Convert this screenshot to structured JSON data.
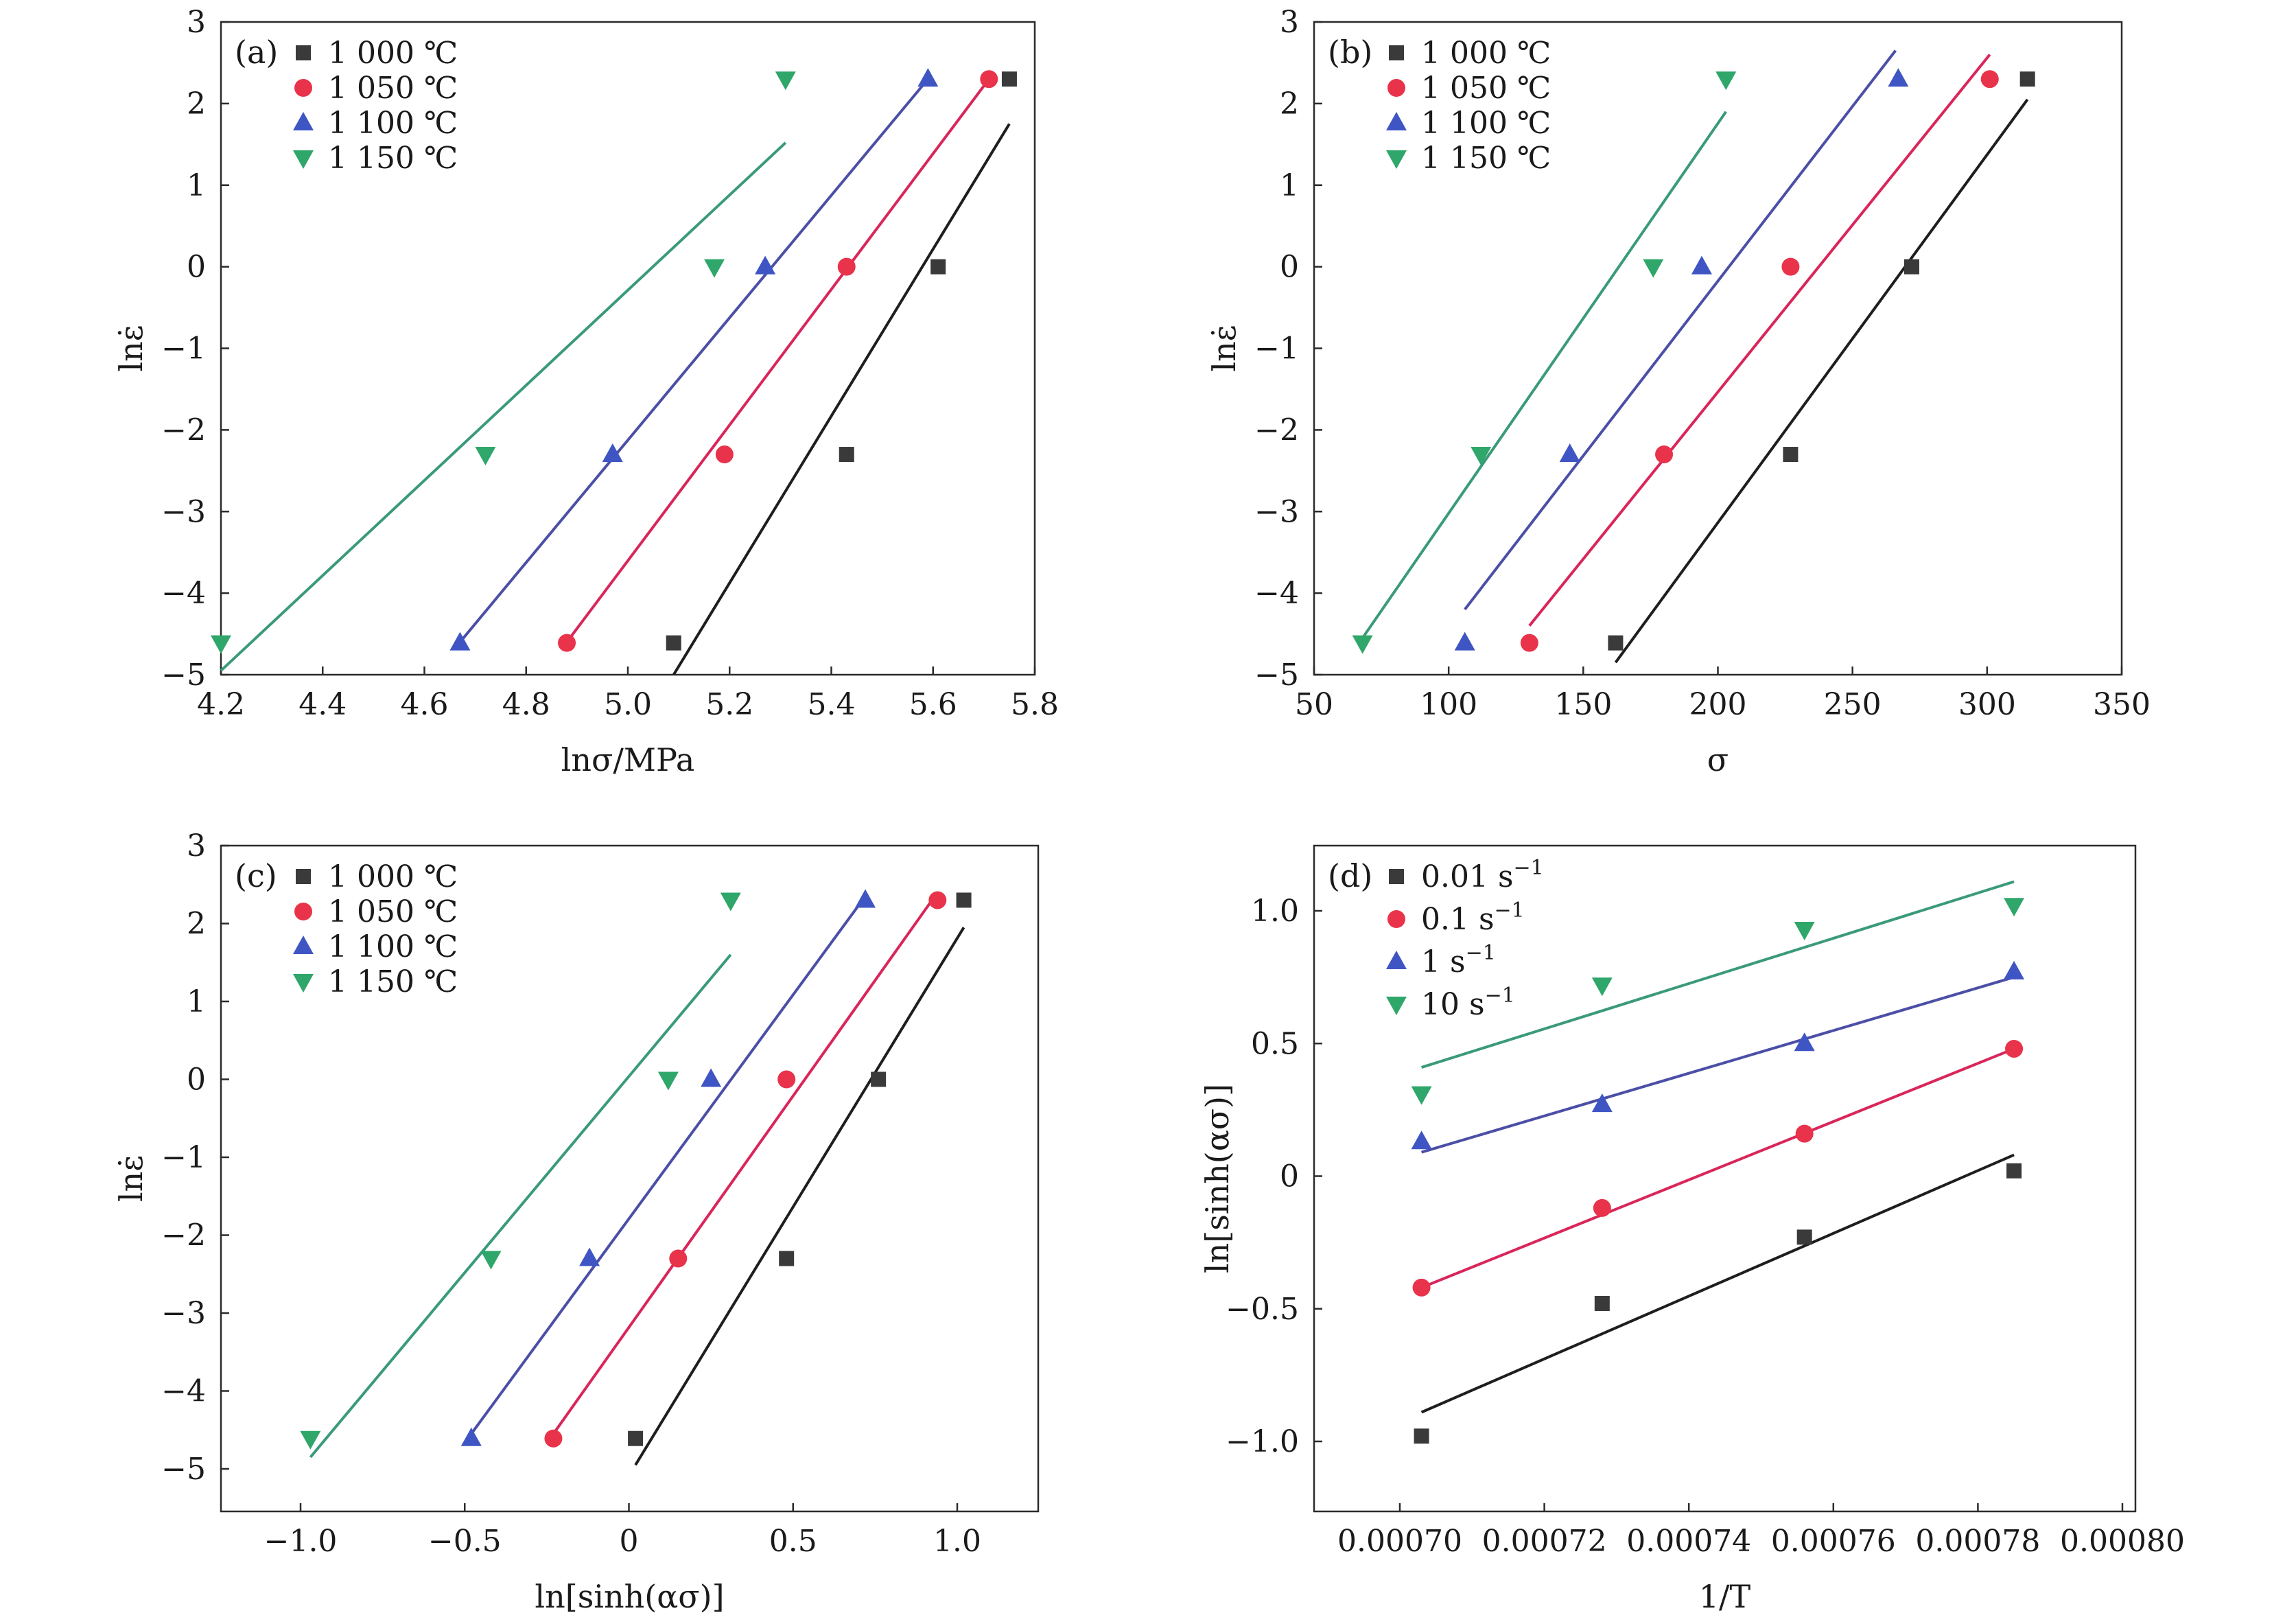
{
  "colors": {
    "c1000": "#3a3a3a",
    "c1050": "#e8334a",
    "c1100": "#3f55c4",
    "c1150": "#2fa66a",
    "line1000": "#1e1e1e",
    "line1050": "#d9265a",
    "line1100": "#4b4fa6",
    "line1150": "#3a9a7a"
  },
  "chart_data": [
    {
      "panel": "(a)",
      "type": "scatter",
      "xlabel": "lnσ/MPa",
      "ylabel": "lnε̇",
      "xlim": [
        4.2,
        5.8
      ],
      "ylim": [
        -5,
        3
      ],
      "xticks": [
        "4.2",
        "4.4",
        "4.6",
        "4.8",
        "5.0",
        "5.2",
        "5.4",
        "5.6",
        "5.8"
      ],
      "xtick_values": [
        4.2,
        4.4,
        4.6,
        4.8,
        5.0,
        5.2,
        5.4,
        5.6,
        5.8
      ],
      "yticks": [
        "3",
        "2",
        "1",
        "0",
        "−1",
        "−2",
        "−3",
        "−4",
        "−5"
      ],
      "ytick_values": [
        3,
        2,
        1,
        0,
        -1,
        -2,
        -3,
        -4,
        -5
      ],
      "legend_position": "top-left",
      "series": [
        {
          "name": "1 000 ℃",
          "marker": "square",
          "color_key": "c1000",
          "line_color_key": "line1000",
          "points": [
            [
              5.09,
              -4.61
            ],
            [
              5.43,
              -2.3
            ],
            [
              5.61,
              0.0
            ],
            [
              5.75,
              2.3
            ]
          ],
          "fit": [
            [
              5.09,
              -5.0
            ],
            [
              5.75,
              1.75
            ]
          ]
        },
        {
          "name": "1 050 ℃",
          "marker": "circle",
          "color_key": "c1050",
          "line_color_key": "line1050",
          "points": [
            [
              4.88,
              -4.61
            ],
            [
              5.19,
              -2.3
            ],
            [
              5.43,
              0.0
            ],
            [
              5.71,
              2.3
            ]
          ],
          "fit": [
            [
              4.88,
              -4.6
            ],
            [
              5.71,
              2.3
            ]
          ]
        },
        {
          "name": "1 100 ℃",
          "marker": "triangle-up",
          "color_key": "c1100",
          "line_color_key": "line1100",
          "points": [
            [
              4.67,
              -4.61
            ],
            [
              4.97,
              -2.3
            ],
            [
              5.27,
              0.0
            ],
            [
              5.59,
              2.3
            ]
          ],
          "fit": [
            [
              4.67,
              -4.6
            ],
            [
              5.59,
              2.3
            ]
          ]
        },
        {
          "name": "1 150 ℃",
          "marker": "triangle-down",
          "color_key": "c1150",
          "line_color_key": "line1150",
          "points": [
            [
              4.2,
              -4.61
            ],
            [
              4.72,
              -2.3
            ],
            [
              5.17,
              0.0
            ],
            [
              5.31,
              2.3
            ]
          ],
          "fit": [
            [
              4.2,
              -4.95
            ],
            [
              5.31,
              1.52
            ]
          ]
        }
      ]
    },
    {
      "panel": "(b)",
      "type": "scatter",
      "xlabel": "σ",
      "ylabel": "lnε̇",
      "xlim": [
        50,
        350
      ],
      "ylim": [
        -5,
        3
      ],
      "xticks": [
        "50",
        "100",
        "150",
        "200",
        "250",
        "300",
        "350"
      ],
      "xtick_values": [
        50,
        100,
        150,
        200,
        250,
        300,
        350
      ],
      "yticks": [
        "3",
        "2",
        "1",
        "0",
        "−1",
        "−2",
        "−3",
        "−4",
        "−5"
      ],
      "ytick_values": [
        3,
        2,
        1,
        0,
        -1,
        -2,
        -3,
        -4,
        -5
      ],
      "legend_position": "top-left",
      "series": [
        {
          "name": "1 000 ℃",
          "marker": "square",
          "color_key": "c1000",
          "line_color_key": "line1000",
          "points": [
            [
              162,
              -4.61
            ],
            [
              227,
              -2.3
            ],
            [
              272,
              0.0
            ],
            [
              315,
              2.3
            ]
          ],
          "fit": [
            [
              162,
              -4.85
            ],
            [
              315,
              2.05
            ]
          ]
        },
        {
          "name": "1 050 ℃",
          "marker": "circle",
          "color_key": "c1050",
          "line_color_key": "line1050",
          "points": [
            [
              130,
              -4.61
            ],
            [
              180,
              -2.3
            ],
            [
              227,
              0.0
            ],
            [
              301,
              2.3
            ]
          ],
          "fit": [
            [
              130,
              -4.4
            ],
            [
              301,
              2.6
            ]
          ]
        },
        {
          "name": "1 100 ℃",
          "marker": "triangle-up",
          "color_key": "c1100",
          "line_color_key": "line1100",
          "points": [
            [
              106,
              -4.61
            ],
            [
              145,
              -2.3
            ],
            [
              194,
              0.0
            ],
            [
              267,
              2.3
            ]
          ],
          "fit": [
            [
              106,
              -4.2
            ],
            [
              266,
              2.65
            ]
          ]
        },
        {
          "name": "1 150 ℃",
          "marker": "triangle-down",
          "color_key": "c1150",
          "line_color_key": "line1150",
          "points": [
            [
              68,
              -4.61
            ],
            [
              112,
              -2.3
            ],
            [
              176,
              0.0
            ],
            [
              203,
              2.3
            ]
          ],
          "fit": [
            [
              68,
              -4.55
            ],
            [
              203,
              1.9
            ]
          ]
        }
      ]
    },
    {
      "panel": "(c)",
      "type": "scatter",
      "xlabel": "ln[sinh(ασ)]",
      "ylabel": "lnε̇",
      "xlim": [
        -1.25,
        1.25
      ],
      "ylim": [
        -5.5,
        3
      ],
      "xticks": [
        "−1.0",
        "−0.5",
        "0",
        "0.5",
        "1.0"
      ],
      "xtick_values": [
        -1.0,
        -0.5,
        0,
        0.5,
        1.0
      ],
      "yticks": [
        "3",
        "2",
        "1",
        "0",
        "−1",
        "−2",
        "−3",
        "−4",
        "−5"
      ],
      "ytick_values": [
        3,
        2,
        1,
        0,
        -1,
        -2,
        -3,
        -4,
        -5
      ],
      "legend_position": "top-left",
      "series": [
        {
          "name": "1 000 ℃",
          "marker": "square",
          "color_key": "c1000",
          "line_color_key": "line1000",
          "points": [
            [
              0.02,
              -4.61
            ],
            [
              0.48,
              -2.3
            ],
            [
              0.76,
              0.0
            ],
            [
              1.02,
              2.3
            ]
          ],
          "fit": [
            [
              0.02,
              -4.95
            ],
            [
              1.02,
              1.95
            ]
          ]
        },
        {
          "name": "1 050 ℃",
          "marker": "circle",
          "color_key": "c1050",
          "line_color_key": "line1050",
          "points": [
            [
              -0.23,
              -4.61
            ],
            [
              0.15,
              -2.3
            ],
            [
              0.48,
              0.0
            ],
            [
              0.94,
              2.3
            ]
          ],
          "fit": [
            [
              -0.23,
              -4.55
            ],
            [
              0.94,
              2.4
            ]
          ]
        },
        {
          "name": "1 100 ℃",
          "marker": "triangle-up",
          "color_key": "c1100",
          "line_color_key": "line1100",
          "points": [
            [
              -0.48,
              -4.61
            ],
            [
              -0.12,
              -2.3
            ],
            [
              0.25,
              0.0
            ],
            [
              0.72,
              2.3
            ]
          ],
          "fit": [
            [
              -0.48,
              -4.55
            ],
            [
              0.72,
              2.35
            ]
          ]
        },
        {
          "name": "1 150 ℃",
          "marker": "triangle-down",
          "color_key": "c1150",
          "line_color_key": "line1150",
          "points": [
            [
              -0.97,
              -4.61
            ],
            [
              -0.42,
              -2.3
            ],
            [
              0.12,
              0.0
            ],
            [
              0.31,
              2.3
            ]
          ],
          "fit": [
            [
              -0.97,
              -4.85
            ],
            [
              0.31,
              1.6
            ]
          ]
        }
      ]
    },
    {
      "panel": "(d)",
      "type": "scatter",
      "xlabel": "1/T",
      "ylabel": "ln[sinh(ασ)]",
      "xlim": [
        0.00068,
        0.0008
      ],
      "ylim": [
        -1.25,
        1.25
      ],
      "xticks": [
        "0.00070",
        "0.00072",
        "0.00074",
        "0.00076",
        "0.00078",
        "0.00080"
      ],
      "xtick_values": [
        0.0007,
        0.00072,
        0.00074,
        0.00076,
        0.00078,
        0.0008
      ],
      "yticks": [
        "1.0",
        "0.5",
        "0",
        "−0.5",
        "−1.0"
      ],
      "ytick_values": [
        1.0,
        0.5,
        0,
        -0.5,
        -1.0
      ],
      "legend_position": "top-left",
      "series": [
        {
          "name": "0.01 s",
          "sup": "−1",
          "marker": "square",
          "color_key": "c1000",
          "line_color_key": "line1000",
          "points": [
            [
              0.000703,
              -0.98
            ],
            [
              0.000728,
              -0.48
            ],
            [
              0.000756,
              -0.23
            ],
            [
              0.000785,
              0.02
            ]
          ],
          "fit": [
            [
              0.000703,
              -0.89
            ],
            [
              0.000785,
              0.08
            ]
          ]
        },
        {
          "name": "0.1 s",
          "sup": "−1",
          "marker": "circle",
          "color_key": "c1050",
          "line_color_key": "line1050",
          "points": [
            [
              0.000703,
              -0.42
            ],
            [
              0.000728,
              -0.12
            ],
            [
              0.000756,
              0.16
            ],
            [
              0.000785,
              0.48
            ]
          ],
          "fit": [
            [
              0.000703,
              -0.42
            ],
            [
              0.000785,
              0.48
            ]
          ]
        },
        {
          "name": "1 s",
          "sup": "−1",
          "marker": "triangle-up",
          "color_key": "c1100",
          "line_color_key": "line1100",
          "points": [
            [
              0.000703,
              0.13
            ],
            [
              0.000728,
              0.27
            ],
            [
              0.000756,
              0.5
            ],
            [
              0.000785,
              0.77
            ]
          ],
          "fit": [
            [
              0.000703,
              0.09
            ],
            [
              0.000785,
              0.75
            ]
          ]
        },
        {
          "name": "10 s",
          "sup": "−1",
          "marker": "triangle-down",
          "color_key": "c1150",
          "line_color_key": "line1150",
          "points": [
            [
              0.000703,
              0.31
            ],
            [
              0.000728,
              0.72
            ],
            [
              0.000756,
              0.93
            ],
            [
              0.000785,
              1.02
            ]
          ],
          "fit": [
            [
              0.000703,
              0.41
            ],
            [
              0.000785,
              1.11
            ]
          ]
        }
      ]
    }
  ]
}
